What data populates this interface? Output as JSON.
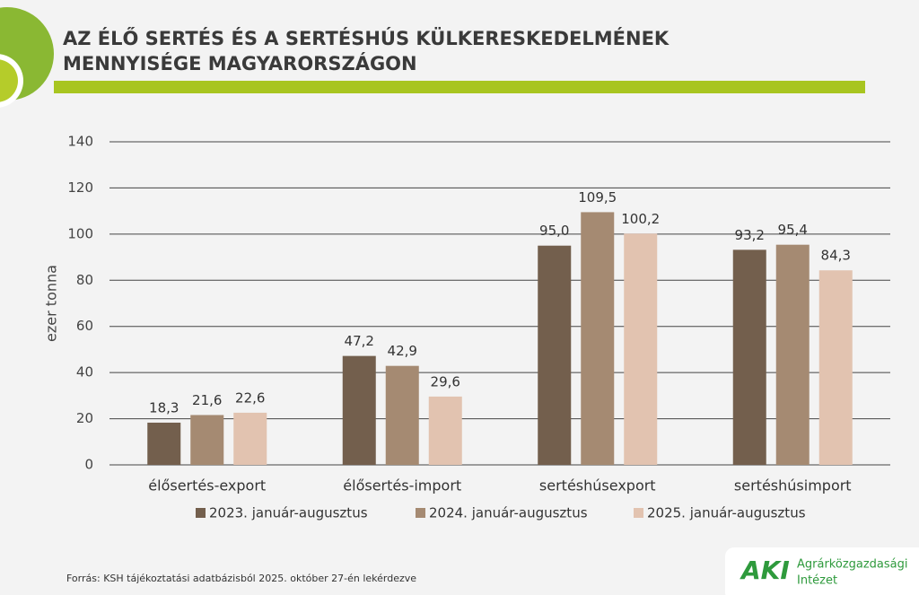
{
  "chart_data": {
    "type": "bar",
    "title": [
      "AZ ÉLŐ SERTÉS ÉS A SERTÉSHÚS KÜLKERESKEDELMÉNEK",
      "MENNYISÉGE MAGYARORSZÁGON"
    ],
    "y_label": "ezer tonna",
    "categories": [
      "élősertés-export",
      "élősertés-import",
      "sertéshúsexport",
      "sertéshúsimport"
    ],
    "series": [
      {
        "name": "2023. január-augusztus",
        "color": "#735f4d",
        "values": [
          18.3,
          47.2,
          95.0,
          93.2
        ],
        "value_labels": [
          "18,3",
          "47,2",
          "95,0",
          "93,2"
        ]
      },
      {
        "name": "2024. január-augusztus",
        "color": "#a58a72",
        "values": [
          21.6,
          42.9,
          109.5,
          95.4
        ],
        "value_labels": [
          "21,6",
          "42,9",
          "109,5",
          "95,4"
        ]
      },
      {
        "name": "2025. január-augusztus",
        "color": "#e2c3b0",
        "values": [
          22.6,
          29.6,
          100.2,
          84.3
        ],
        "value_labels": [
          "22,6",
          "29,6",
          "100,2",
          "84,3"
        ]
      }
    ],
    "ylim": [
      0,
      140
    ],
    "yticks": [
      0,
      20,
      40,
      60,
      80,
      100,
      120,
      140
    ],
    "grid": true,
    "legend": "bottom",
    "source": "Forrás: KSH tájékoztatási adatbázisból 2025. október 27-én lekérdezve"
  },
  "logo": {
    "mark": "AKI",
    "lines": [
      "Agrárközgazdasági",
      "Intézet"
    ]
  }
}
